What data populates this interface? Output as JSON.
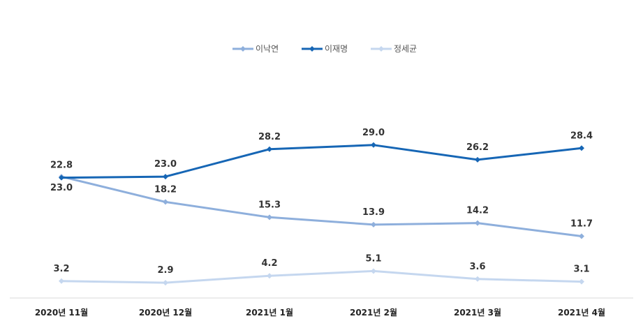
{
  "chart_data": {
    "type": "line",
    "title": "",
    "xlabel": "",
    "ylabel": "",
    "categories": [
      "2020년 11월",
      "2020년 12월",
      "2021년 1월",
      "2021년 2월",
      "2021년 3월",
      "2021년 4월"
    ],
    "ylim": [
      0,
      35
    ],
    "grid": false,
    "legend_position": "top",
    "series": [
      {
        "name": "이낙연",
        "color": "#8eafdc",
        "values": [
          23.0,
          18.2,
          15.3,
          13.9,
          14.2,
          11.7
        ],
        "label_position": [
          "below",
          "above",
          "above",
          "above",
          "above",
          "above"
        ]
      },
      {
        "name": "이재명",
        "color": "#1666b5",
        "values": [
          22.8,
          23.0,
          28.2,
          29.0,
          26.2,
          28.4
        ],
        "label_position": [
          "above",
          "above",
          "above",
          "above",
          "above",
          "above"
        ]
      },
      {
        "name": "정세균",
        "color": "#c5d7ef",
        "values": [
          3.2,
          2.9,
          4.2,
          5.1,
          3.6,
          3.1
        ],
        "label_position": [
          "above",
          "above",
          "above",
          "above",
          "above",
          "above"
        ]
      }
    ]
  }
}
